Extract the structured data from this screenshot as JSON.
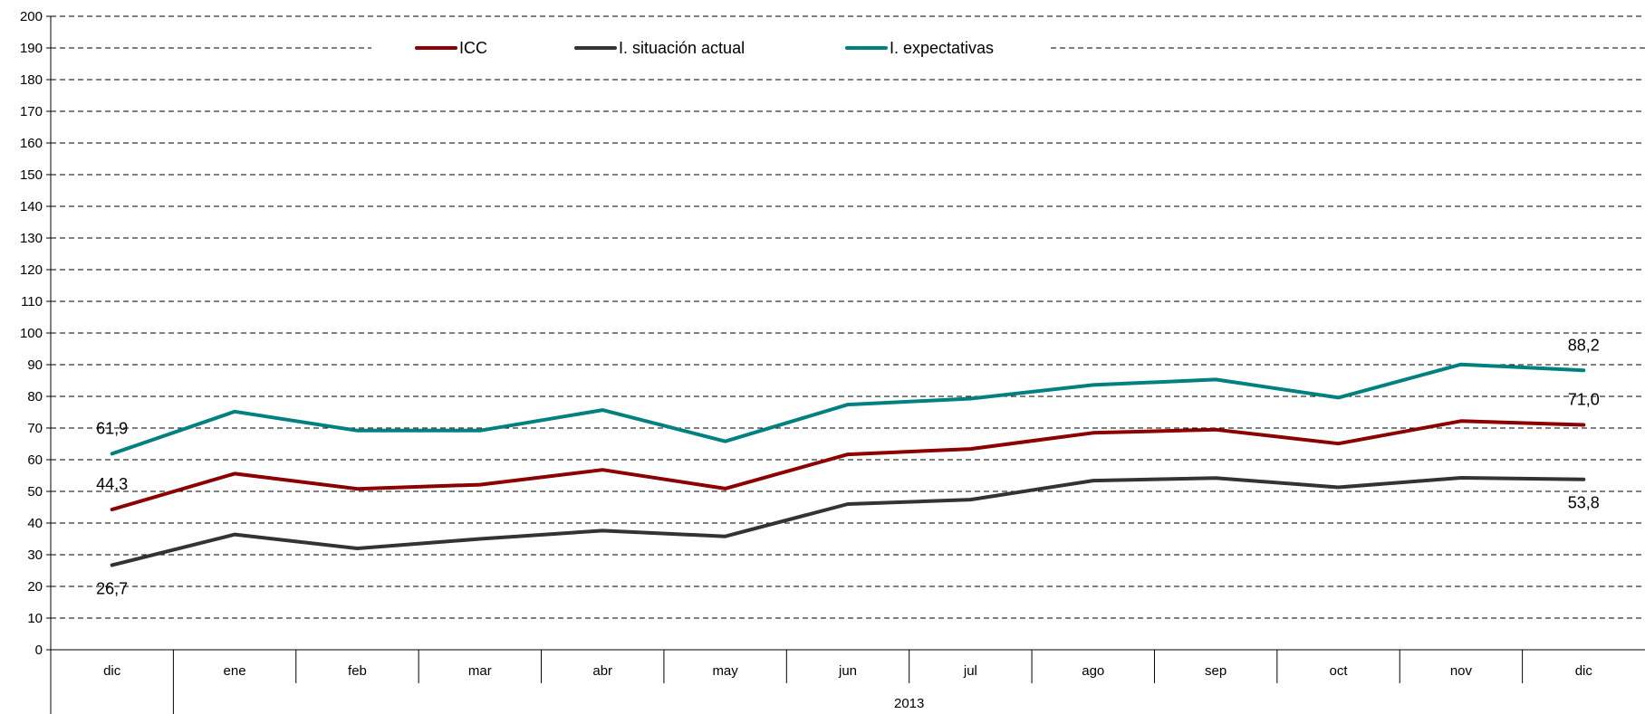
{
  "chart_data": {
    "type": "line",
    "categories": [
      "dic",
      "ene",
      "feb",
      "mar",
      "abr",
      "may",
      "jun",
      "jul",
      "ago",
      "sep",
      "oct",
      "nov",
      "dic"
    ],
    "year_group_label": "2013",
    "ylim": [
      0,
      200
    ],
    "ytick_step": 10,
    "yticks": [
      "0",
      "10",
      "20",
      "30",
      "40",
      "50",
      "60",
      "70",
      "80",
      "90",
      "100",
      "110",
      "120",
      "130",
      "140",
      "150",
      "160",
      "170",
      "180",
      "190",
      "200"
    ],
    "grid": "horizontal-dashed",
    "legend_position": "top",
    "series": [
      {
        "name": "ICC",
        "color": "#8b0000",
        "values": [
          44.3,
          55.6,
          50.8,
          52.1,
          56.8,
          50.9,
          61.7,
          63.4,
          68.5,
          69.5,
          65.1,
          72.2,
          71.0
        ],
        "labels": [
          {
            "index": 0,
            "text": "44,3"
          },
          {
            "index": 12,
            "text": "71,0"
          }
        ]
      },
      {
        "name": "I. situación actual",
        "color": "#333333",
        "values": [
          26.7,
          36.4,
          32.0,
          35.0,
          37.6,
          35.8,
          46.0,
          47.4,
          53.4,
          54.2,
          51.3,
          54.3,
          53.8
        ],
        "labels": [
          {
            "index": 0,
            "text": "26,7"
          },
          {
            "index": 12,
            "text": "53,8"
          }
        ]
      },
      {
        "name": "I. expectativas",
        "color": "#008080",
        "values": [
          61.9,
          75.2,
          69.2,
          69.2,
          75.7,
          65.8,
          77.4,
          79.3,
          83.6,
          85.3,
          79.6,
          90.1,
          88.2
        ],
        "labels": [
          {
            "index": 0,
            "text": "61,9"
          },
          {
            "index": 12,
            "text": "88,2"
          }
        ]
      }
    ]
  }
}
